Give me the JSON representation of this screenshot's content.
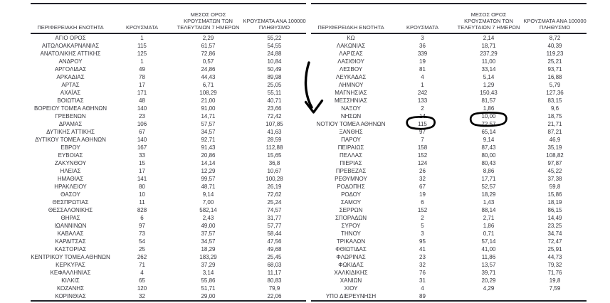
{
  "columns": [
    {
      "label": "ΠΕΡΙΦΕΡΕΙΑΚΗ ΕΝΟΤΗΤΑ",
      "lines": [
        "ΠΕΡΙΦΕΡΕΙΑΚΗ ΕΝΟΤΗΤΑ"
      ]
    },
    {
      "label": "ΚΡΟΥΣΜΑΤΑ",
      "lines": [
        "ΚΡΟΥΣΜΑΤΑ"
      ]
    },
    {
      "label": "ΜΕΣΟΣ ΟΡΟΣ ΚΡΟΥΣΜΑΤΩΝ ΤΩΝ ΤΕΛΕΥΤΑΙΩΝ 7 ΗΜΕΡΩΝ",
      "lines": [
        "ΜΕΣΟΣ ΟΡΟΣ",
        "ΚΡΟΥΣΜΑΤΩΝ ΤΩΝ",
        "ΤΕΛΕΥΤΑΙΩΝ 7 ΗΜΕΡΩΝ"
      ]
    },
    {
      "label": "ΚΡΟΥΣΜΑΤΑ ΑΝΑ 100000 ΠΛΗΘΥΣΜΟ",
      "lines": [
        "ΚΡΟΥΣΜΑΤΑ ΑΝΑ 100000",
        "ΠΛΗΘΥΣΜΟ"
      ]
    }
  ],
  "tables": {
    "left": {
      "rows": [
        [
          "ΑΓΙΟ ΟΡΟΣ",
          "1",
          "2,29",
          "55,22"
        ],
        [
          "ΑΙΤΩΛΟΑΚΑΡΝΑΝΙΑΣ",
          "115",
          "61,57",
          "54,55"
        ],
        [
          "ΑΝΑΤΟΛΙΚΗΣ ΑΤΤΙΚΗΣ",
          "125",
          "72,86",
          "24,88"
        ],
        [
          "ΑΝΔΡΟΥ",
          "1",
          "0,57",
          "10,84"
        ],
        [
          "ΑΡΓΟΛΙΔΑΣ",
          "49",
          "24,86",
          "50,49"
        ],
        [
          "ΑΡΚΑΔΙΑΣ",
          "78",
          "44,43",
          "89,98"
        ],
        [
          "ΑΡΤΑΣ",
          "17",
          "6,71",
          "25,05"
        ],
        [
          "ΑΧΑΪΑΣ",
          "171",
          "108,29",
          "55,11"
        ],
        [
          "ΒΟΙΩΤΙΑΣ",
          "48",
          "21,00",
          "40,71"
        ],
        [
          "ΒΟΡΕΙΟΥ ΤΟΜΕΑ ΑΘΗΝΩΝ",
          "140",
          "91,00",
          "23,66"
        ],
        [
          "ΓΡΕΒΕΝΩΝ",
          "23",
          "14,71",
          "72,42"
        ],
        [
          "ΔΡΑΜΑΣ",
          "106",
          "57,57",
          "107,85"
        ],
        [
          "ΔΥΤΙΚΗΣ ΑΤΤΙΚΗΣ",
          "67",
          "34,57",
          "41,63"
        ],
        [
          "ΔΥΤΙΚΟΥ ΤΟΜΕΑ ΑΘΗΝΩΝ",
          "140",
          "92,71",
          "28,59"
        ],
        [
          "ΕΒΡΟΥ",
          "167",
          "91,43",
          "112,88"
        ],
        [
          "ΕΥΒΟΙΑΣ",
          "33",
          "20,86",
          "15,65"
        ],
        [
          "ΖΑΚΥΝΘΟΥ",
          "15",
          "14,14",
          "36,8"
        ],
        [
          "ΗΛΕΙΑΣ",
          "17",
          "12,29",
          "10,67"
        ],
        [
          "ΗΜΑΘΙΑΣ",
          "141",
          "99,57",
          "100,28"
        ],
        [
          "ΗΡΑΚΛΕΙΟΥ",
          "80",
          "48,71",
          "26,19"
        ],
        [
          "ΘΑΣΟΥ",
          "10",
          "9,14",
          "72,62"
        ],
        [
          "ΘΕΣΠΡΩΤΙΑΣ",
          "11",
          "7,00",
          "25,24"
        ],
        [
          "ΘΕΣΣΑΛΟΝΙΚΗΣ",
          "828",
          "582,14",
          "74,57"
        ],
        [
          "ΘΗΡΑΣ",
          "6",
          "2,43",
          "31,77"
        ],
        [
          "ΙΩΑΝΝΙΝΩΝ",
          "97",
          "49,00",
          "57,77"
        ],
        [
          "ΚΑΒΑΛΑΣ",
          "73",
          "37,57",
          "58,44"
        ],
        [
          "ΚΑΡΔΙΤΣΑΣ",
          "54",
          "34,57",
          "47,56"
        ],
        [
          "ΚΑΣΤΟΡΙΑΣ",
          "25",
          "18,29",
          "49,68"
        ],
        [
          "ΚΕΝΤΡΙΚΟΥ ΤΟΜΕΑ ΑΘΗΝΩΝ",
          "262",
          "183,29",
          "25,45"
        ],
        [
          "ΚΕΡΚΥΡΑΣ",
          "71",
          "37,29",
          "68,03"
        ],
        [
          "ΚΕΦΑΛΛΗΝΙΑΣ",
          "4",
          "3,14",
          "11,17"
        ],
        [
          "ΚΙΛΚΙΣ",
          "65",
          "55,86",
          "80,83"
        ],
        [
          "ΚΟΖΑΝΗΣ",
          "120",
          "51,71",
          "79,9"
        ],
        [
          "ΚΟΡΙΝΘΙΑΣ",
          "32",
          "29,00",
          "22,06"
        ]
      ]
    },
    "right": {
      "rows": [
        [
          "ΚΩ",
          "3",
          "2,14",
          "8,72"
        ],
        [
          "ΛΑΚΩΝΙΑΣ",
          "36",
          "18,71",
          "40,39"
        ],
        [
          "ΛΑΡΙΣΑΣ",
          "339",
          "237,29",
          "119,23"
        ],
        [
          "ΛΑΣΙΘΙΟΥ",
          "19",
          "11,00",
          "25,21"
        ],
        [
          "ΛΕΣΒΟΥ",
          "81",
          "33,14",
          "93,71"
        ],
        [
          "ΛΕΥΚΑΔΑΣ",
          "4",
          "5,14",
          "16,88"
        ],
        [
          "ΛΗΜΝΟΥ",
          "1",
          "1,29",
          "5,79"
        ],
        [
          "ΜΑΓΝΗΣΙΑΣ",
          "242",
          "150,43",
          "127,36"
        ],
        [
          "ΜΕΣΣΗΝΙΑΣ",
          "133",
          "81,57",
          "83,15"
        ],
        [
          "ΝΑΞΟΥ",
          "2",
          "1,86",
          "9,6"
        ],
        [
          "ΝΗΣΩΝ",
          "14",
          "10,00",
          "18,75"
        ],
        [
          "ΝΟΤΙΟΥ ΤΟΜΕΑ ΑΘΗΝΩΝ",
          "115",
          "72,57",
          "21,71"
        ],
        [
          "ΞΑΝΘΗΣ",
          "97",
          "65,14",
          "87,21"
        ],
        [
          "ΠΑΡΟΥ",
          "7",
          "9,14",
          "46,9"
        ],
        [
          "ΠΕΙΡΑΙΩΣ",
          "158",
          "87,43",
          "35,19"
        ],
        [
          "ΠΕΛΛΑΣ",
          "152",
          "80,00",
          "108,82"
        ],
        [
          "ΠΙΕΡΙΑΣ",
          "124",
          "80,43",
          "97,87"
        ],
        [
          "ΠΡΕΒΕΖΑΣ",
          "26",
          "8,86",
          "45,22"
        ],
        [
          "ΡΕΘΥΜΝΟΥ",
          "32",
          "17,71",
          "37,38"
        ],
        [
          "ΡΟΔΟΠΗΣ",
          "67",
          "52,57",
          "59,8"
        ],
        [
          "ΡΟΔΟΥ",
          "19",
          "18,29",
          "15,86"
        ],
        [
          "ΣΑΜΟΥ",
          "6",
          "1,43",
          "18,19"
        ],
        [
          "ΣΕΡΡΩΝ",
          "152",
          "88,14",
          "86,15"
        ],
        [
          "ΣΠΟΡΑΔΩΝ",
          "2",
          "2,71",
          "14,49"
        ],
        [
          "ΣΥΡΟΥ",
          "5",
          "1,86",
          "23,25"
        ],
        [
          "ΤΗΝΟΥ",
          "3",
          "0,71",
          "34,74"
        ],
        [
          "ΤΡΙΚΑΛΩΝ",
          "95",
          "57,14",
          "72,47"
        ],
        [
          "ΦΘΙΩΤΙΔΑΣ",
          "41",
          "41,00",
          "25,91"
        ],
        [
          "ΦΛΩΡΙΝΑΣ",
          "23",
          "11,86",
          "44,73"
        ],
        [
          "ΦΩΚΙΔΑΣ",
          "32",
          "13,57",
          "79,32"
        ],
        [
          "ΧΑΛΚΙΔΙΚΗΣ",
          "76",
          "39,71",
          "71,76"
        ],
        [
          "ΧΑΝΙΩΝ",
          "31",
          "20,29",
          "19,8"
        ],
        [
          "ΧΙΟΥ",
          "4",
          "4,29",
          "7,59"
        ],
        [
          "ΥΠΟ ΔΙΕΡΕΥΝΗΣΗ",
          "89",
          "",
          ""
        ]
      ]
    }
  },
  "annotations": {
    "type": "hand-drawn-marker",
    "color": "#000000",
    "arrow_target_row": "ΝΟΤΙΟΥ ΤΟΜΕΑ ΑΘΗΝΩΝ",
    "circled_values": [
      "115",
      "72,57"
    ]
  }
}
